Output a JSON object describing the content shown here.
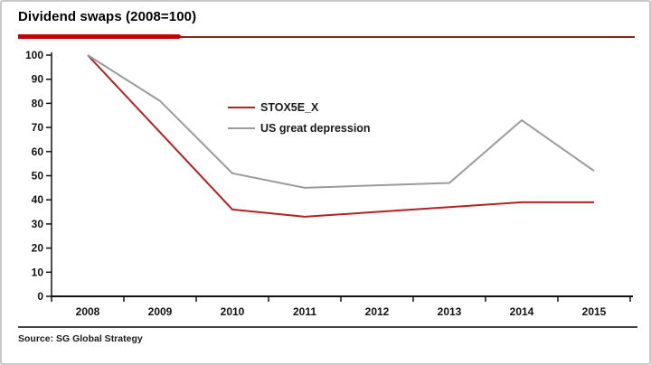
{
  "title": "Dividend swaps (2008=100)",
  "source": "Source: SG Global Strategy",
  "colors": {
    "accent_thick_underline": "#c40000",
    "accent_thin_underline": "#8b2323",
    "series_red": "#b22222",
    "series_gray": "#9b9b9b",
    "axis": "#121212",
    "footer_rule": "#454545",
    "frame_border": "#c9c9c9"
  },
  "chart_data": {
    "type": "line",
    "title": "Dividend swaps (2008=100)",
    "x": [
      2008,
      2009,
      2010,
      2011,
      2012,
      2013,
      2014,
      2015
    ],
    "series": [
      {
        "name": "STOX5E_X",
        "color": "#b22222",
        "values": [
          100,
          68,
          36,
          33,
          35,
          37,
          39,
          39
        ]
      },
      {
        "name": "US great depression",
        "color": "#9b9b9b",
        "values": [
          100,
          81,
          51,
          45,
          46,
          47,
          73,
          52
        ]
      }
    ],
    "xlabel": "",
    "ylabel": "",
    "ylim": [
      0,
      100
    ],
    "yticks": [
      0,
      10,
      20,
      30,
      40,
      50,
      60,
      70,
      80,
      90,
      100
    ],
    "grid": false,
    "legend_position": "inside-upper-middle"
  }
}
